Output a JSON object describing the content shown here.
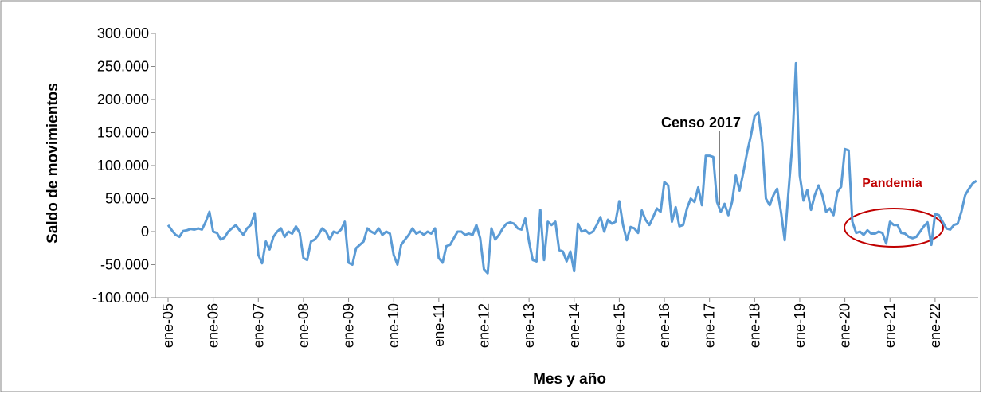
{
  "chart_data": {
    "type": "line",
    "y_label": "Saldo de movimientos",
    "x_label": "Mes y año",
    "annotations": [
      "Censo 2017",
      "Pandemia"
    ],
    "categories": [
      "ene-05",
      null,
      null,
      null,
      null,
      null,
      null,
      null,
      null,
      null,
      null,
      null,
      "ene-06",
      null,
      null,
      null,
      null,
      null,
      null,
      null,
      null,
      null,
      null,
      null,
      "ene-07",
      null,
      null,
      null,
      null,
      null,
      null,
      null,
      null,
      null,
      null,
      null,
      "ene-08",
      null,
      null,
      null,
      null,
      null,
      null,
      null,
      null,
      null,
      null,
      null,
      "ene-09",
      null,
      null,
      null,
      null,
      null,
      null,
      null,
      null,
      null,
      null,
      null,
      "ene-10",
      null,
      null,
      null,
      null,
      null,
      null,
      null,
      null,
      null,
      null,
      null,
      "ene-11",
      null,
      null,
      null,
      null,
      null,
      null,
      null,
      null,
      null,
      null,
      null,
      "ene-12",
      null,
      null,
      null,
      null,
      null,
      null,
      null,
      null,
      null,
      null,
      null,
      "ene-13",
      null,
      null,
      null,
      null,
      null,
      null,
      null,
      null,
      null,
      null,
      null,
      "ene-14",
      null,
      null,
      null,
      null,
      null,
      null,
      null,
      null,
      null,
      null,
      null,
      "ene-15",
      null,
      null,
      null,
      null,
      null,
      null,
      null,
      null,
      null,
      null,
      null,
      "ene-16",
      null,
      null,
      null,
      null,
      null,
      null,
      null,
      null,
      null,
      null,
      null,
      "ene-17",
      null,
      null,
      null,
      null,
      null,
      null,
      null,
      null,
      null,
      null,
      null,
      "ene-18",
      null,
      null,
      null,
      null,
      null,
      null,
      null,
      null,
      null,
      null,
      null,
      "ene-19",
      null,
      null,
      null,
      null,
      null,
      null,
      null,
      null,
      null,
      null,
      null,
      "ene-20",
      null,
      null,
      null,
      null,
      null,
      null,
      null,
      null,
      null,
      null,
      null,
      "ene-21",
      null,
      null,
      null,
      null,
      null,
      null,
      null,
      null,
      null,
      null,
      null,
      "ene-22",
      null,
      null,
      null,
      null,
      null,
      null,
      null,
      null,
      null,
      null,
      null
    ],
    "color": "#5b9bd5",
    "values": [
      10000,
      2000,
      -5000,
      -8000,
      1000,
      2000,
      4000,
      3000,
      5000,
      3000,
      15000,
      30000,
      0,
      -2000,
      -12000,
      -9000,
      0,
      5000,
      10000,
      2000,
      -5000,
      5000,
      10000,
      28000,
      -35000,
      -48000,
      -15000,
      -27000,
      -8000,
      0,
      5000,
      -8000,
      0,
      -3000,
      8000,
      -2000,
      -40000,
      -43000,
      -15000,
      -12000,
      -5000,
      5000,
      0,
      -12000,
      0,
      -2000,
      3000,
      15000,
      -47000,
      -50000,
      -25000,
      -20000,
      -15000,
      5000,
      0,
      -3000,
      5000,
      -5000,
      0,
      -3000,
      -35000,
      -50000,
      -20000,
      -12000,
      -5000,
      5000,
      -3000,
      0,
      -5000,
      0,
      -3000,
      5000,
      -40000,
      -47000,
      -22000,
      -20000,
      -10000,
      0,
      0,
      -5000,
      -3000,
      -5000,
      10000,
      -10000,
      -57000,
      -63000,
      5000,
      -12000,
      -5000,
      5000,
      12000,
      14000,
      12000,
      5000,
      3000,
      20000,
      -15000,
      -43000,
      -45000,
      33000,
      -43000,
      15000,
      10000,
      15000,
      -28000,
      -30000,
      -45000,
      -30000,
      -60000,
      12000,
      0,
      2000,
      -3000,
      0,
      10000,
      22000,
      0,
      18000,
      12000,
      15000,
      46000,
      10000,
      -13000,
      7000,
      5000,
      -2000,
      32000,
      18000,
      10000,
      22000,
      35000,
      30000,
      75000,
      70000,
      15000,
      37000,
      8000,
      10000,
      35000,
      50000,
      45000,
      67000,
      40000,
      115000,
      115000,
      113000,
      45000,
      30000,
      42000,
      25000,
      45000,
      85000,
      62000,
      90000,
      120000,
      145000,
      175000,
      180000,
      135000,
      50000,
      40000,
      55000,
      65000,
      30000,
      -13000,
      60000,
      130000,
      255000,
      85000,
      47000,
      63000,
      33000,
      55000,
      70000,
      55000,
      30000,
      35000,
      25000,
      60000,
      68000,
      125000,
      123000,
      15000,
      -2000,
      0,
      -5000,
      2000,
      -3000,
      -3000,
      0,
      -2000,
      -18000,
      15000,
      10000,
      10000,
      -2000,
      -3000,
      -8000,
      -10000,
      -8000,
      0,
      8000,
      14000,
      -20000,
      27000,
      25000,
      15000,
      5000,
      3000,
      10000,
      12000,
      30000,
      55000,
      65000,
      73000,
      77000
    ],
    "ylim": [
      -100000,
      300000
    ],
    "yticks": [
      {
        "value": -100000,
        "label": "-100.000"
      },
      {
        "value": -50000,
        "label": "-50.000"
      },
      0,
      {
        "value": 50000,
        "label": "50.000"
      },
      {
        "value": 100000,
        "label": "100.000"
      },
      {
        "value": 150000,
        "label": "150.000"
      },
      {
        "value": 200000,
        "label": "200.000"
      },
      {
        "value": 250000,
        "label": "250.000"
      },
      {
        "value": 300000,
        "label": "300.000"
      }
    ],
    "grid": false
  }
}
